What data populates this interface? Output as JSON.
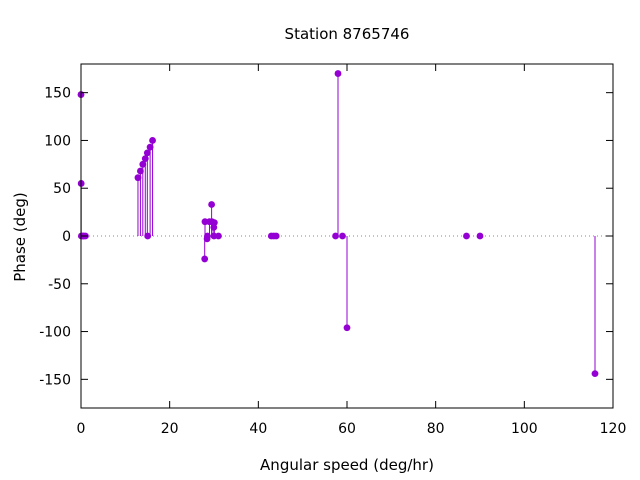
{
  "chart_data": {
    "type": "scatter",
    "style": "impulses-with-points",
    "title": "Station 8765746",
    "xlabel": "Angular speed (deg/hr)",
    "ylabel": "Phase (deg)",
    "xlim": [
      0,
      120
    ],
    "ylim": [
      -180,
      180
    ],
    "xticks": [
      0,
      20,
      40,
      60,
      80,
      100,
      120
    ],
    "yticks": [
      -150,
      -100,
      -50,
      0,
      50,
      100,
      150
    ],
    "grid": false,
    "zero_line": true,
    "color": "#9400d3",
    "points": [
      {
        "x": 0.0,
        "y": 148
      },
      {
        "x": 0.04,
        "y": 55
      },
      {
        "x": 0.08,
        "y": 0
      },
      {
        "x": 0.5,
        "y": 0
      },
      {
        "x": 0.55,
        "y": 0
      },
      {
        "x": 1.0,
        "y": 0
      },
      {
        "x": 12.85,
        "y": 61
      },
      {
        "x": 13.4,
        "y": 68
      },
      {
        "x": 13.94,
        "y": 75
      },
      {
        "x": 14.5,
        "y": 81
      },
      {
        "x": 14.96,
        "y": 87
      },
      {
        "x": 15.04,
        "y": 0
      },
      {
        "x": 15.59,
        "y": 93
      },
      {
        "x": 16.14,
        "y": 100
      },
      {
        "x": 27.9,
        "y": -24
      },
      {
        "x": 27.97,
        "y": 15
      },
      {
        "x": 28.44,
        "y": -3
      },
      {
        "x": 28.51,
        "y": 0
      },
      {
        "x": 28.98,
        "y": 15
      },
      {
        "x": 29.46,
        "y": 33
      },
      {
        "x": 29.53,
        "y": 15
      },
      {
        "x": 29.96,
        "y": 9
      },
      {
        "x": 30.0,
        "y": 0
      },
      {
        "x": 30.08,
        "y": 14
      },
      {
        "x": 31.0,
        "y": 0
      },
      {
        "x": 42.93,
        "y": 0
      },
      {
        "x": 43.48,
        "y": 0
      },
      {
        "x": 44.03,
        "y": 0
      },
      {
        "x": 57.42,
        "y": 0
      },
      {
        "x": 57.97,
        "y": 170
      },
      {
        "x": 58.98,
        "y": 0
      },
      {
        "x": 60.0,
        "y": -96
      },
      {
        "x": 86.95,
        "y": 0
      },
      {
        "x": 90.0,
        "y": 0
      },
      {
        "x": 115.94,
        "y": -144
      }
    ]
  }
}
